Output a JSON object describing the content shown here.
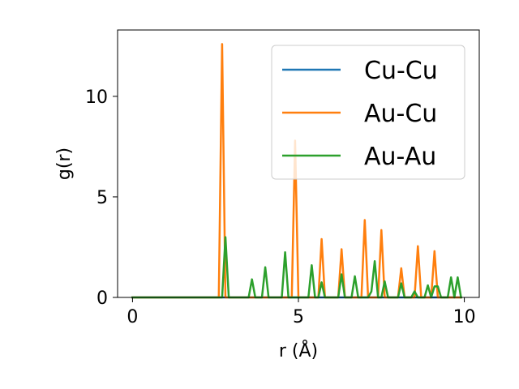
{
  "chart_data": {
    "type": "line",
    "title": "",
    "xlabel": "r (Å)",
    "ylabel": "g(r)",
    "xlim": [
      -0.45,
      10.45
    ],
    "ylim": [
      0,
      13.3
    ],
    "xticks": [
      0,
      5,
      10
    ],
    "xtick_labels": [
      "0",
      "5",
      "10"
    ],
    "yticks": [
      0,
      5,
      10
    ],
    "ytick_labels": [
      "0",
      "5",
      "10"
    ],
    "grid": false,
    "legend_position": "upper right",
    "series": [
      {
        "name": "Cu-Cu",
        "color": "#1f77b4",
        "x": [
          0,
          9.9
        ],
        "y": [
          0,
          0
        ]
      },
      {
        "name": "Au-Cu",
        "color": "#ff7f0e",
        "x": [
          0,
          2.6,
          2.7,
          2.8,
          2.9,
          4.8,
          4.9,
          5.0,
          5.6,
          5.7,
          5.8,
          6.2,
          6.3,
          6.4,
          6.9,
          7.0,
          7.1,
          7.4,
          7.5,
          7.6,
          8.0,
          8.1,
          8.2,
          8.5,
          8.6,
          8.7,
          9.0,
          9.1,
          9.2,
          9.9
        ],
        "y": [
          0,
          0,
          12.6,
          0,
          0,
          0,
          7.8,
          0,
          0,
          2.9,
          0,
          0,
          2.4,
          0,
          0,
          3.85,
          0,
          0,
          3.35,
          0,
          0,
          1.45,
          0,
          0,
          2.55,
          0,
          0,
          2.3,
          0,
          0
        ]
      },
      {
        "name": "Au-Au",
        "color": "#2ca02c",
        "x": [
          0,
          2.7,
          2.8,
          2.9,
          3.5,
          3.6,
          3.7,
          3.9,
          4.0,
          4.1,
          4.5,
          4.6,
          4.7,
          5.3,
          5.4,
          5.5,
          5.6,
          5.7,
          5.8,
          6.2,
          6.3,
          6.4,
          6.6,
          6.7,
          6.8,
          7.1,
          7.2,
          7.3,
          7.4,
          7.5,
          7.6,
          7.7,
          8.0,
          8.1,
          8.2,
          8.4,
          8.5,
          8.6,
          8.8,
          8.9,
          9.0,
          9.1,
          9.2,
          9.3,
          9.5,
          9.6,
          9.7,
          9.8,
          9.9
        ],
        "y": [
          0,
          0,
          3.0,
          0,
          0,
          0.9,
          0,
          0,
          1.5,
          0,
          0,
          2.25,
          0,
          0,
          1.6,
          0,
          0,
          0.75,
          0,
          0,
          1.15,
          0,
          0,
          1.05,
          0,
          0,
          0.3,
          1.8,
          0,
          0,
          0.8,
          0,
          0,
          0.7,
          0,
          0,
          0.3,
          0,
          0,
          0.6,
          0,
          0.55,
          0.55,
          0,
          0,
          1.0,
          0,
          1.0,
          0
        ]
      }
    ]
  }
}
